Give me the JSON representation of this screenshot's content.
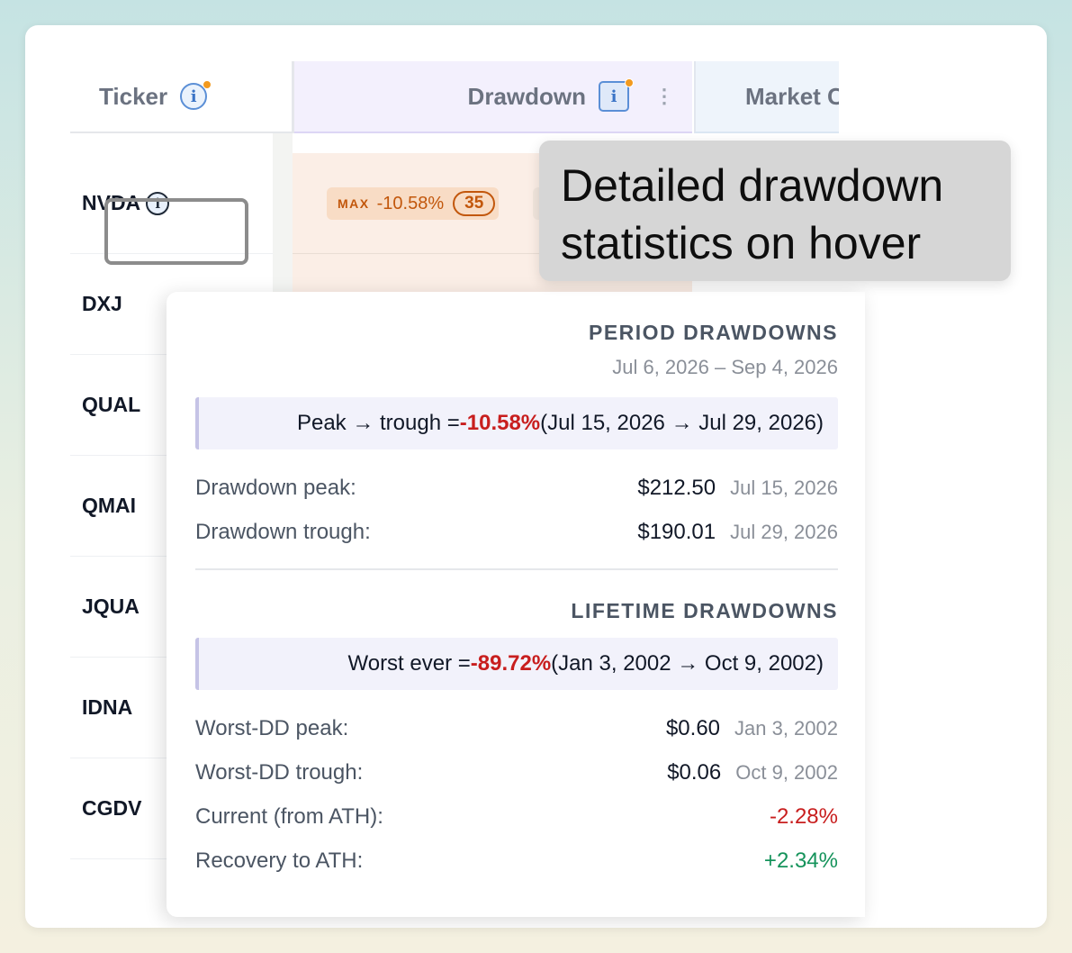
{
  "table": {
    "headers": {
      "ticker": "Ticker",
      "drawdown": "Drawdown",
      "market": "Market C"
    },
    "rows": [
      {
        "ticker": "NVDA"
      },
      {
        "ticker": "DXJ"
      },
      {
        "ticker": "QUAL"
      },
      {
        "ticker": "QMAI"
      },
      {
        "ticker": "JQUA"
      },
      {
        "ticker": "IDNA"
      },
      {
        "ticker": "CGDV"
      }
    ],
    "nvda_drawdown": {
      "max_label": "MAX",
      "value": "-10.58%",
      "count": "35"
    }
  },
  "callout": {
    "line1": "Detailed drawdown",
    "line2": "statistics on hover"
  },
  "popover": {
    "period": {
      "title": "PERIOD DRAWDOWNS",
      "range": "Jul 6, 2026 – Sep 4, 2026",
      "summary_prefix": "Peak → trough = ",
      "summary_value": "-10.58%",
      "summary_suffix": " (Jul 15, 2026 → Jul 29, 2026)",
      "peak_label": "Drawdown peak:",
      "peak_value": "$212.50",
      "peak_date": "Jul 15, 2026",
      "trough_label": "Drawdown trough:",
      "trough_value": "$190.01",
      "trough_date": "Jul 29, 2026"
    },
    "lifetime": {
      "title": "LIFETIME DRAWDOWNS",
      "summary_prefix": "Worst ever = ",
      "summary_value": "-89.72%",
      "summary_suffix": " (Jan 3, 2002 → Oct 9, 2002)",
      "peak_label": "Worst-DD peak:",
      "peak_value": "$0.60",
      "peak_date": "Jan 3, 2002",
      "trough_label": "Worst-DD trough:",
      "trough_value": "$0.06",
      "trough_date": "Oct 9, 2002",
      "current_label": "Current (from ATH):",
      "current_value": "-2.28%",
      "recovery_label": "Recovery to ATH:",
      "recovery_value": "+2.34%"
    }
  },
  "colors": {
    "negative": "#c81e1e",
    "positive": "#15935b",
    "accent_orange": "#c2570c"
  },
  "icons": [
    "info-icon",
    "notification-dot",
    "kebab-menu-icon"
  ]
}
